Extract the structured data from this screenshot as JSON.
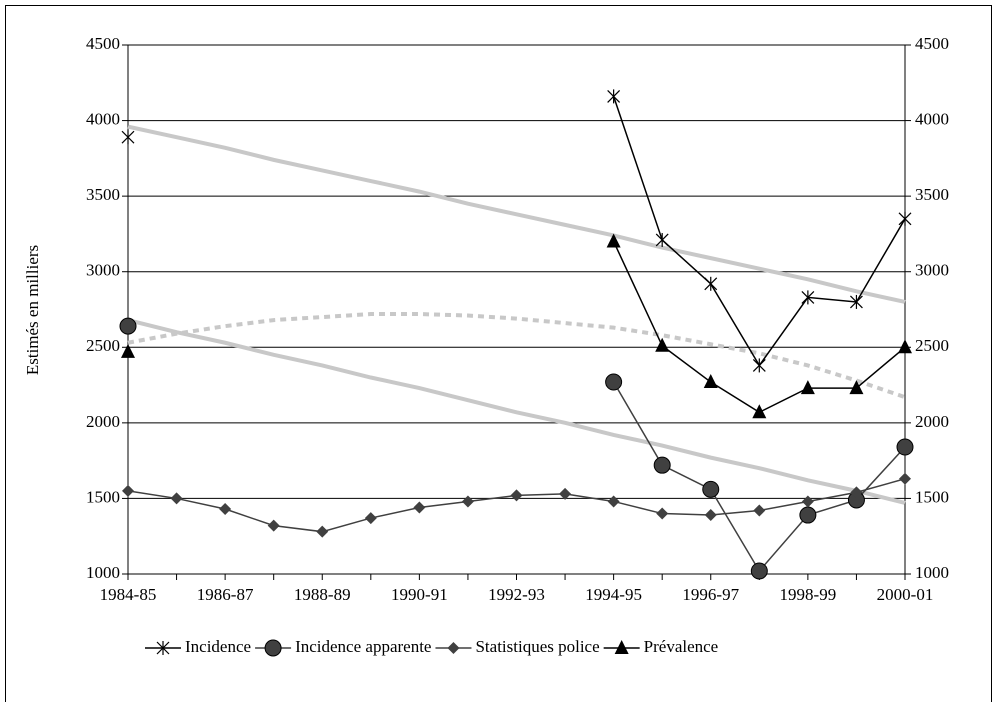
{
  "chart_data": {
    "type": "line",
    "y_label": "Estimés en milliers",
    "categories": [
      "1984-85",
      null,
      "1986-87",
      null,
      "1988-89",
      null,
      "1990-91",
      null,
      "1992-93",
      null,
      "1994-95",
      null,
      "1996-97",
      null,
      "1998-99",
      null,
      "2000-01"
    ],
    "ylim": [
      1000,
      4500
    ],
    "yticks": [
      1000,
      1500,
      2000,
      2500,
      3000,
      3500,
      4000,
      4500
    ],
    "y2lim": [
      1000,
      4500
    ],
    "y2ticks": [
      1000,
      1500,
      2000,
      2500,
      3000,
      3500,
      4000,
      4500
    ],
    "grid": true,
    "legend": "bottom",
    "series": [
      {
        "name": "Incidence",
        "color": "#000000",
        "marker": "asterisk",
        "values": [
          3890,
          null,
          null,
          null,
          null,
          null,
          null,
          null,
          null,
          null,
          4160,
          3210,
          2920,
          2380,
          2830,
          2800,
          3350
        ]
      },
      {
        "name": "Incidence apparente",
        "color": "#404040",
        "marker": "circle",
        "values": [
          2640,
          null,
          null,
          null,
          null,
          null,
          null,
          null,
          null,
          null,
          2270,
          1720,
          1560,
          1020,
          1390,
          1490,
          1840
        ]
      },
      {
        "name": "Statistiques police",
        "color": "#404040",
        "marker": "diamond",
        "values": [
          1550,
          1500,
          1430,
          1320,
          1280,
          1370,
          1440,
          1480,
          1520,
          1530,
          1480,
          1400,
          1390,
          1420,
          1480,
          1540,
          1630
        ]
      },
      {
        "name": "Prévalence",
        "color": "#000000",
        "marker": "triangle",
        "values": [
          2470,
          null,
          null,
          null,
          null,
          null,
          null,
          null,
          null,
          null,
          3200,
          2510,
          2270,
          2070,
          2230,
          2230,
          2500
        ]
      }
    ],
    "trendlines": [
      {
        "color": "#c8c8c8",
        "dashed": false,
        "values": [
          3960,
          3890,
          3820,
          3740,
          3670,
          3600,
          3530,
          3450,
          3380,
          3310,
          3240,
          3160,
          3090,
          3020,
          2950,
          2870,
          2800
        ]
      },
      {
        "color": "#c8c8c8",
        "dashed": false,
        "values": [
          2680,
          2600,
          2530,
          2450,
          2380,
          2300,
          2230,
          2150,
          2070,
          2000,
          1920,
          1850,
          1770,
          1700,
          1620,
          1550,
          1470
        ]
      },
      {
        "color": "#c8c8c8",
        "dashed": true,
        "values": [
          2530,
          2590,
          2640,
          2680,
          2700,
          2720,
          2720,
          2710,
          2690,
          2660,
          2630,
          2580,
          2520,
          2460,
          2380,
          2280,
          2170
        ]
      }
    ]
  }
}
